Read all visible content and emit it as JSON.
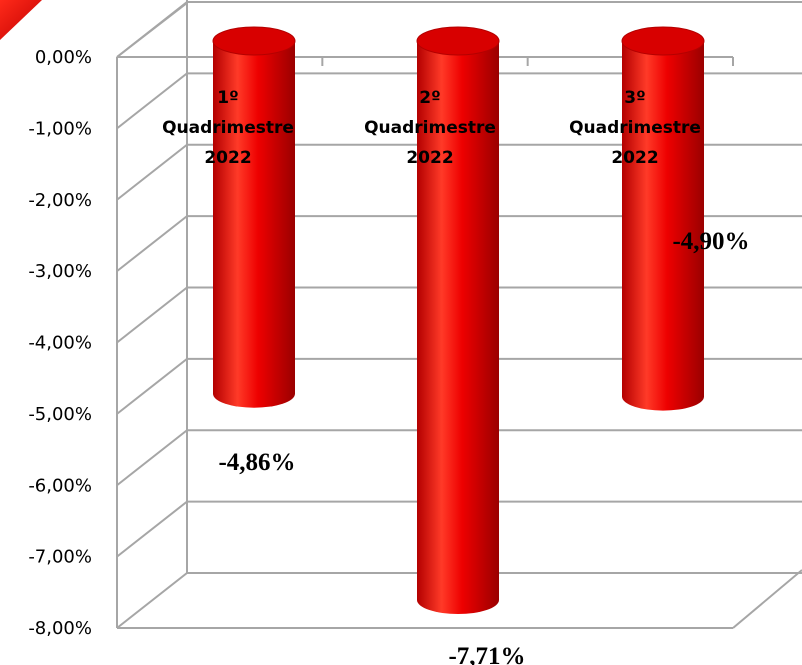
{
  "chart_data": {
    "type": "bar",
    "style": "3d-cylinder",
    "categories": [
      [
        "1º",
        "Quadrimestre",
        "2022"
      ],
      [
        "2º",
        "Quadrimestre",
        "2022"
      ],
      [
        "3º",
        "Quadrimestre",
        "2022"
      ]
    ],
    "values": [
      -4.86,
      -7.71,
      -4.9
    ],
    "data_labels": [
      "-4,86%",
      "-7,71%",
      "-4,90%"
    ],
    "yticks": [
      "0,00%",
      "-1,00%",
      "-2,00%",
      "-3,00%",
      "-4,00%",
      "-5,00%",
      "-6,00%",
      "-7,00%",
      "-8,00%"
    ],
    "ylim": [
      -8,
      0
    ],
    "grid": true,
    "legend": "none",
    "colors": {
      "bar": "#ee0000",
      "bar_dark": "#a00000",
      "bar_light": "#ff5a4a",
      "grid": "#a6a6a6"
    }
  }
}
